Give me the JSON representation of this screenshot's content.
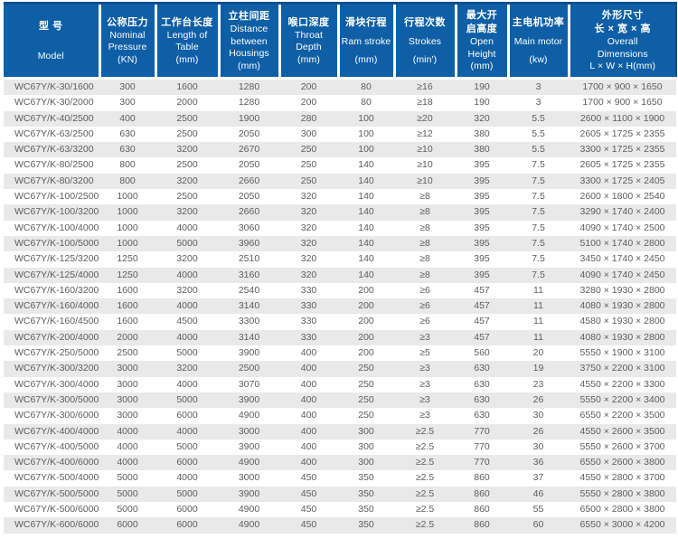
{
  "colors": {
    "header-bg": "#0e5fa6",
    "header-top": "#0a5093",
    "row-alt": "#e9e9e9",
    "row-text": "#5d5d5f",
    "header-text": "#ffffff"
  },
  "table": {
    "columns": [
      {
        "id": "model",
        "zh": [
          "型 号"
        ],
        "en": [
          "Model"
        ],
        "width": 106
      },
      {
        "id": "nominal-pressure",
        "zh": [
          "公称压力"
        ],
        "en": [
          "Nominal",
          "Pressure",
          "(KN)"
        ],
        "width": 62
      },
      {
        "id": "table-length",
        "zh": [
          "工作台长度"
        ],
        "en": [
          "Length of",
          "Table",
          "(mm)"
        ],
        "width": 70
      },
      {
        "id": "housing-distance",
        "zh": [
          "立柱间距"
        ],
        "en": [
          "Distance",
          "between",
          "Housings",
          "(mm)"
        ],
        "width": 67
      },
      {
        "id": "throat-depth",
        "zh": [
          "喉口深度"
        ],
        "en": [
          "Throat",
          "Depth",
          "(mm)"
        ],
        "width": 65
      },
      {
        "id": "ram-stroke",
        "zh": [
          "滑块行程"
        ],
        "en": [
          "Ram stroke",
          "(mm)"
        ],
        "width": 62
      },
      {
        "id": "strokes",
        "zh": [
          "行程次数"
        ],
        "en": [
          "Strokes",
          "(min')"
        ],
        "width": 68
      },
      {
        "id": "open-height",
        "zh": [
          "最大开",
          "启高度"
        ],
        "en": [
          "Open",
          "Height",
          "(mm)"
        ],
        "width": 58
      },
      {
        "id": "main-motor",
        "zh": [
          "主电机功率"
        ],
        "en": [
          "Main motor",
          "(kw)"
        ],
        "width": 67
      },
      {
        "id": "overall-dimensions",
        "zh": [
          "外形尺寸",
          "长 × 宽 × 高"
        ],
        "en": [
          "Overall",
          "Dimensions",
          "L × W × H(mm)"
        ],
        "width": 119
      }
    ],
    "rows": [
      [
        "WC67Y/K-30/1600",
        "300",
        "1600",
        "1280",
        "200",
        "80",
        "≥16",
        "190",
        "3",
        "1700 × 900 × 1650"
      ],
      [
        "WC67Y/K-30/2000",
        "300",
        "2000",
        "1280",
        "200",
        "80",
        "≥18",
        "190",
        "3",
        "1700 × 900 × 1650"
      ],
      [
        "WC67Y/K-40/2500",
        "400",
        "2500",
        "1900",
        "280",
        "100",
        "≥20",
        "320",
        "5.5",
        "2600 × 1100 × 1900"
      ],
      [
        "WC67Y/K-63/2500",
        "630",
        "2500",
        "2050",
        "300",
        "100",
        "≥12",
        "380",
        "5.5",
        "2605 × 1725 × 2355"
      ],
      [
        "WC67Y/K-63/3200",
        "630",
        "3200",
        "2670",
        "250",
        "100",
        "≥10",
        "380",
        "5.5",
        "3300 × 1725 × 2355"
      ],
      [
        "WC67Y/K-80/2500",
        "800",
        "2500",
        "2050",
        "250",
        "140",
        "≥10",
        "395",
        "7.5",
        "2605 × 1725 × 2355"
      ],
      [
        "WC67Y/K-80/3200",
        "800",
        "3200",
        "2660",
        "250",
        "140",
        "≥10",
        "395",
        "7.5",
        "3300 × 1725 × 2405"
      ],
      [
        "WC67Y/K-100/2500",
        "1000",
        "2500",
        "2050",
        "320",
        "140",
        "≥8",
        "395",
        "7.5",
        "2600 × 1800 × 2540"
      ],
      [
        "WC67Y/K-100/3200",
        "1000",
        "3200",
        "2660",
        "320",
        "140",
        "≥8",
        "395",
        "7.5",
        "3290 × 1740 × 2400"
      ],
      [
        "WC67Y/K-100/4000",
        "1000",
        "4000",
        "3060",
        "320",
        "140",
        "≥8",
        "395",
        "7.5",
        "4090 × 1740 × 2500"
      ],
      [
        "WC67Y/K-100/5000",
        "1000",
        "5000",
        "3960",
        "320",
        "140",
        "≥8",
        "395",
        "7.5",
        "5100 × 1740 × 2800"
      ],
      [
        "WC67Y/K-125/3200",
        "1250",
        "3200",
        "2510",
        "320",
        "140",
        "≥8",
        "395",
        "7.5",
        "3450 × 1740 × 2450"
      ],
      [
        "WC67Y/K-125/4000",
        "1250",
        "4000",
        "3160",
        "320",
        "140",
        "≥8",
        "395",
        "7.5",
        "4090 × 1740 × 2450"
      ],
      [
        "WC67Y/K-160/3200",
        "1600",
        "3200",
        "2540",
        "330",
        "200",
        "≥6",
        "457",
        "11",
        "3280 × 1930 × 2800"
      ],
      [
        "WC67Y/K-160/4000",
        "1600",
        "4000",
        "3140",
        "330",
        "200",
        "≥6",
        "457",
        "11",
        "4080 × 1930 × 2800"
      ],
      [
        "WC67Y/K-160/4500",
        "1600",
        "4500",
        "3300",
        "330",
        "200",
        "≥6",
        "457",
        "11",
        "4580 × 1930 × 2800"
      ],
      [
        "WC67Y/K-200/4000",
        "2000",
        "4000",
        "3140",
        "330",
        "200",
        "≥3",
        "457",
        "11",
        "4080 × 1930 × 2800"
      ],
      [
        "WC67Y/K-250/5000",
        "2500",
        "5000",
        "3900",
        "400",
        "200",
        "≥5",
        "560",
        "20",
        "5550 × 1900 × 3100"
      ],
      [
        "WC67Y/K-300/3200",
        "3000",
        "3200",
        "2500",
        "400",
        "250",
        "≥3",
        "630",
        "19",
        "3750 × 2200 × 3100"
      ],
      [
        "WC67Y/K-300/4000",
        "3000",
        "4000",
        "3070",
        "400",
        "250",
        "≥3",
        "630",
        "23",
        "4550 × 2200 × 3300"
      ],
      [
        "WC67Y/K-300/5000",
        "3000",
        "5000",
        "3900",
        "400",
        "250",
        "≥3",
        "630",
        "26",
        "5550 × 2200 × 3400"
      ],
      [
        "WC67Y/K-300/6000",
        "3000",
        "6000",
        "4900",
        "400",
        "250",
        "≥3",
        "630",
        "30",
        "6550 × 2200 × 3500"
      ],
      [
        "WC67Y/K-400/4000",
        "4000",
        "4000",
        "3000",
        "400",
        "300",
        "≥2.5",
        "770",
        "26",
        "4550 × 2600 × 3500"
      ],
      [
        "WC67Y/K-400/5000",
        "4000",
        "5000",
        "3900",
        "400",
        "300",
        "≥2.5",
        "770",
        "30",
        "5550 × 2600 × 3700"
      ],
      [
        "WC67Y/K-400/6000",
        "4000",
        "6000",
        "4900",
        "400",
        "300",
        "≥2.5",
        "770",
        "36",
        "6550 × 2600 × 3800"
      ],
      [
        "WC67Y/K-500/4000",
        "5000",
        "4000",
        "3000",
        "450",
        "350",
        "≥2.5",
        "860",
        "37",
        "4550 × 2800 × 3700"
      ],
      [
        "WC67Y/K-500/5000",
        "5000",
        "5000",
        "3900",
        "450",
        "350",
        "≥2.5",
        "860",
        "46",
        "5550 × 2800 × 3800"
      ],
      [
        "WC67Y/K-500/6000",
        "5000",
        "6000",
        "4900",
        "450",
        "350",
        "≥2.5",
        "860",
        "55",
        "6500 × 2800 × 3800"
      ],
      [
        "WC67Y/K-600/6000",
        "6000",
        "6000",
        "4900",
        "450",
        "350",
        "≥2.5",
        "860",
        "60",
        "6550 × 3000 × 4200"
      ]
    ]
  }
}
